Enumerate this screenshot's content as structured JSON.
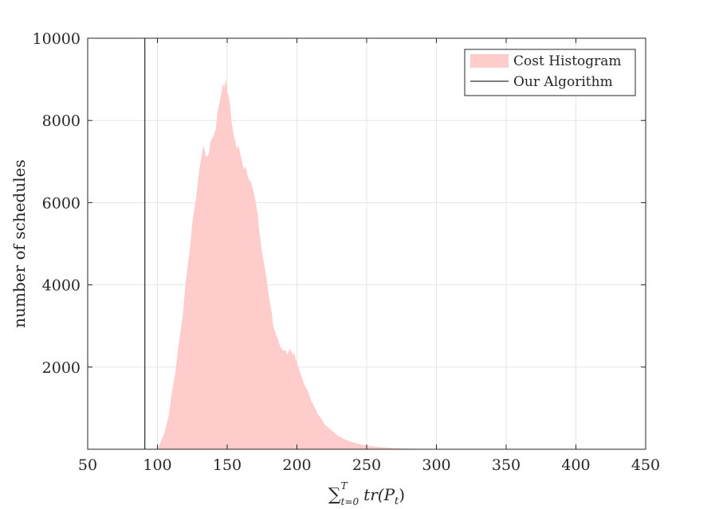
{
  "chart_data": {
    "type": "area",
    "xlabel": "∑ tr(P_t)",
    "xlabel_parts": {
      "sum": "∑",
      "sup": "T",
      "sub": "t=0",
      "body": "tr(P",
      "body_sub": "t",
      "close": ")"
    },
    "ylabel": "number of schedules",
    "xlim": [
      50,
      450
    ],
    "ylim": [
      0,
      10000
    ],
    "x_ticks": [
      50,
      100,
      150,
      200,
      250,
      300,
      350,
      400,
      450
    ],
    "y_ticks": [
      2000,
      4000,
      6000,
      8000,
      10000
    ],
    "grid": true,
    "legend_position": "top-right",
    "series": [
      {
        "name": "Cost Histogram",
        "kind": "area",
        "color": "#ffcccc",
        "x": [
          100,
          102,
          105,
          108,
          110,
          113,
          115,
          118,
          120,
          123,
          125,
          128,
          130,
          132,
          133,
          135,
          137,
          138,
          140,
          142,
          143,
          145,
          146,
          147,
          148,
          149,
          150,
          151,
          152,
          153,
          155,
          157,
          158,
          160,
          162,
          163,
          165,
          167,
          168,
          170,
          172,
          173,
          175,
          177,
          178,
          180,
          182,
          183,
          185,
          187,
          188,
          190,
          192,
          193,
          195,
          197,
          198,
          200,
          203,
          205,
          208,
          210,
          213,
          215,
          218,
          220,
          225,
          230,
          235,
          240,
          245,
          250,
          255,
          260,
          270,
          280,
          290,
          300,
          320,
          340,
          360,
          380,
          400,
          450
        ],
        "values": [
          0,
          150,
          400,
          800,
          1300,
          1900,
          2500,
          3200,
          4000,
          4800,
          5500,
          6200,
          6800,
          7200,
          7400,
          7100,
          7200,
          7500,
          7600,
          7800,
          8200,
          8500,
          8700,
          8900,
          8800,
          9000,
          8700,
          8600,
          8400,
          8000,
          7600,
          7300,
          7400,
          7100,
          6800,
          6900,
          6600,
          6500,
          6400,
          6100,
          5700,
          5300,
          4800,
          4400,
          4200,
          3700,
          3300,
          3000,
          2800,
          2600,
          2500,
          2400,
          2400,
          2300,
          2450,
          2300,
          2350,
          2100,
          1800,
          1600,
          1400,
          1200,
          1000,
          850,
          720,
          600,
          450,
          320,
          230,
          170,
          120,
          90,
          70,
          50,
          30,
          15,
          8,
          5,
          3,
          2,
          1,
          0,
          0,
          0
        ]
      },
      {
        "name": "Our Algorithm",
        "kind": "vline",
        "color": "#000000",
        "x": 91
      }
    ]
  }
}
